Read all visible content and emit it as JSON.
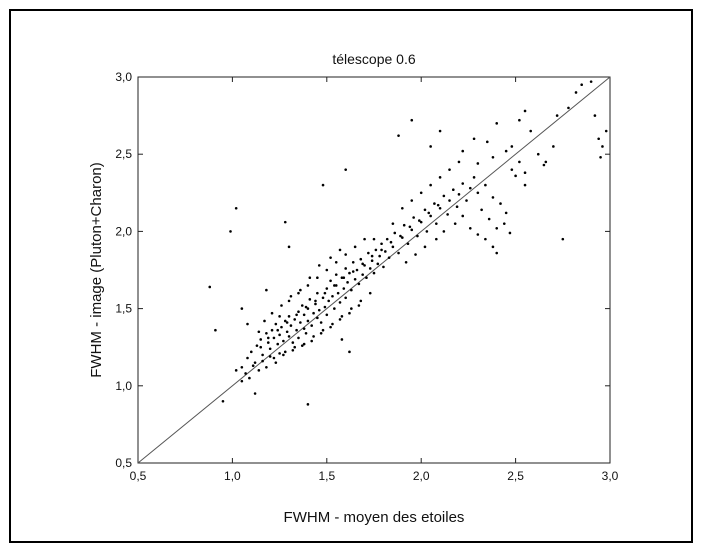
{
  "chart_data": {
    "type": "scatter",
    "title": "télescope 0.6",
    "xlabel": "FWHM - moyen des etoiles",
    "ylabel": "FWHM - image (Pluton+Charon)",
    "xlim": [
      0.5,
      3.0
    ],
    "ylim": [
      0.5,
      3.0
    ],
    "xticks": [
      0.5,
      1.0,
      1.5,
      2.0,
      2.5,
      3.0
    ],
    "yticks": [
      0.5,
      1.0,
      1.5,
      2.0,
      2.5,
      3.0
    ],
    "xtick_labels": [
      "0,5",
      "1,0",
      "1,5",
      "2,0",
      "2,5",
      "3,0"
    ],
    "ytick_labels": [
      "0,5",
      "1,0",
      "1,5",
      "2,0",
      "2,5",
      "3,0"
    ],
    "grid": false,
    "legend": "none",
    "reference_line": {
      "x": [
        0.5,
        3.0
      ],
      "y": [
        0.5,
        3.0
      ]
    },
    "point_color": "#000000",
    "line_color": "#555555",
    "points": [
      [
        1.02,
        1.1
      ],
      [
        1.05,
        1.12
      ],
      [
        1.08,
        1.18
      ],
      [
        1.1,
        1.22
      ],
      [
        1.12,
        1.15
      ],
      [
        1.13,
        1.26
      ],
      [
        1.15,
        1.3
      ],
      [
        1.16,
        1.2
      ],
      [
        1.18,
        1.34
      ],
      [
        1.19,
        1.28
      ],
      [
        1.2,
        1.24
      ],
      [
        1.21,
        1.36
      ],
      [
        1.22,
        1.31
      ],
      [
        1.23,
        1.4
      ],
      [
        1.24,
        1.27
      ],
      [
        1.25,
        1.33
      ],
      [
        1.26,
        1.38
      ],
      [
        1.27,
        1.29
      ],
      [
        1.28,
        1.42
      ],
      [
        1.29,
        1.35
      ],
      [
        1.3,
        1.32
      ],
      [
        1.3,
        1.45
      ],
      [
        1.31,
        1.39
      ],
      [
        1.32,
        1.28
      ],
      [
        1.33,
        1.43
      ],
      [
        1.34,
        1.36
      ],
      [
        1.35,
        1.48
      ],
      [
        1.35,
        1.31
      ],
      [
        1.36,
        1.41
      ],
      [
        1.37,
        1.52
      ],
      [
        1.38,
        1.37
      ],
      [
        1.38,
        1.46
      ],
      [
        1.39,
        1.34
      ],
      [
        1.4,
        1.5
      ],
      [
        1.4,
        1.42
      ],
      [
        1.41,
        1.56
      ],
      [
        1.42,
        1.39
      ],
      [
        1.43,
        1.47
      ],
      [
        1.44,
        1.53
      ],
      [
        1.45,
        1.44
      ],
      [
        1.45,
        1.6
      ],
      [
        1.46,
        1.49
      ],
      [
        1.47,
        1.41
      ],
      [
        1.48,
        1.57
      ],
      [
        1.49,
        1.51
      ],
      [
        1.5,
        1.63
      ],
      [
        1.5,
        1.46
      ],
      [
        1.51,
        1.55
      ],
      [
        1.52,
        1.68
      ],
      [
        1.53,
        1.58
      ],
      [
        1.54,
        1.5
      ],
      [
        1.55,
        1.65
      ],
      [
        1.55,
        1.72
      ],
      [
        1.56,
        1.6
      ],
      [
        1.57,
        1.54
      ],
      [
        1.58,
        1.7
      ],
      [
        1.59,
        1.63
      ],
      [
        1.6,
        1.76
      ],
      [
        1.6,
        1.57
      ],
      [
        1.61,
        1.67
      ],
      [
        1.62,
        1.73
      ],
      [
        1.63,
        1.62
      ],
      [
        1.64,
        1.8
      ],
      [
        1.65,
        1.69
      ],
      [
        1.66,
        1.75
      ],
      [
        1.67,
        1.66
      ],
      [
        1.68,
        1.82
      ],
      [
        1.69,
        1.72
      ],
      [
        1.7,
        1.78
      ],
      [
        1.71,
        1.7
      ],
      [
        1.72,
        1.86
      ],
      [
        1.73,
        1.76
      ],
      [
        1.74,
        1.81
      ],
      [
        1.75,
        1.73
      ],
      [
        1.76,
        1.88
      ],
      [
        1.77,
        1.79
      ],
      [
        1.78,
        1.84
      ],
      [
        1.79,
        1.92
      ],
      [
        1.8,
        1.77
      ],
      [
        1.81,
        1.87
      ],
      [
        1.82,
        1.95
      ],
      [
        1.83,
        1.83
      ],
      [
        1.85,
        1.9
      ],
      [
        1.86,
        1.99
      ],
      [
        1.88,
        1.86
      ],
      [
        1.9,
        1.96
      ],
      [
        1.91,
        2.04
      ],
      [
        1.93,
        1.92
      ],
      [
        1.95,
        2.01
      ],
      [
        1.96,
        2.09
      ],
      [
        1.98,
        1.97
      ],
      [
        2.0,
        2.06
      ],
      [
        2.02,
        2.14
      ],
      [
        2.03,
        2.0
      ],
      [
        2.05,
        2.1
      ],
      [
        2.07,
        2.18
      ],
      [
        2.08,
        2.05
      ],
      [
        2.1,
        2.15
      ],
      [
        2.12,
        2.23
      ],
      [
        2.14,
        2.11
      ],
      [
        2.15,
        2.2
      ],
      [
        2.17,
        2.27
      ],
      [
        2.19,
        2.16
      ],
      [
        2.2,
        2.24
      ],
      [
        2.22,
        2.31
      ],
      [
        2.24,
        2.2
      ],
      [
        2.26,
        2.28
      ],
      [
        2.28,
        2.35
      ],
      [
        2.3,
        2.25
      ],
      [
        2.32,
        2.14
      ],
      [
        2.34,
        2.3
      ],
      [
        2.36,
        2.08
      ],
      [
        2.38,
        2.22
      ],
      [
        2.4,
        2.02
      ],
      [
        2.42,
        2.18
      ],
      [
        2.45,
        2.12
      ],
      [
        2.48,
        2.4
      ],
      [
        2.5,
        2.36
      ],
      [
        2.52,
        2.45
      ],
      [
        2.55,
        2.3
      ],
      [
        1.25,
        1.45
      ],
      [
        1.3,
        1.55
      ],
      [
        1.35,
        1.6
      ],
      [
        1.4,
        1.65
      ],
      [
        1.45,
        1.7
      ],
      [
        1.5,
        1.75
      ],
      [
        1.55,
        1.8
      ],
      [
        1.6,
        1.85
      ],
      [
        1.65,
        1.9
      ],
      [
        1.7,
        1.95
      ],
      [
        1.28,
        1.22
      ],
      [
        1.33,
        1.25
      ],
      [
        1.38,
        1.27
      ],
      [
        1.43,
        1.32
      ],
      [
        1.48,
        1.36
      ],
      [
        1.53,
        1.4
      ],
      [
        1.58,
        1.45
      ],
      [
        1.63,
        1.5
      ],
      [
        1.68,
        1.55
      ],
      [
        1.73,
        1.6
      ],
      [
        1.14,
        1.35
      ],
      [
        1.17,
        1.42
      ],
      [
        1.21,
        1.47
      ],
      [
        1.26,
        1.52
      ],
      [
        1.31,
        1.58
      ],
      [
        1.36,
        1.62
      ],
      [
        1.41,
        1.7
      ],
      [
        1.46,
        1.78
      ],
      [
        1.52,
        1.83
      ],
      [
        1.57,
        1.88
      ],
      [
        1.22,
        1.18
      ],
      [
        1.27,
        1.2
      ],
      [
        1.32,
        1.23
      ],
      [
        1.37,
        1.26
      ],
      [
        1.42,
        1.29
      ],
      [
        1.47,
        1.34
      ],
      [
        1.52,
        1.38
      ],
      [
        1.57,
        1.43
      ],
      [
        1.62,
        1.47
      ],
      [
        1.67,
        1.52
      ],
      [
        1.9,
        2.15
      ],
      [
        1.95,
        2.2
      ],
      [
        2.0,
        2.25
      ],
      [
        2.05,
        2.3
      ],
      [
        2.1,
        2.35
      ],
      [
        2.15,
        2.4
      ],
      [
        1.92,
        1.8
      ],
      [
        1.97,
        1.85
      ],
      [
        2.02,
        1.9
      ],
      [
        2.08,
        1.95
      ],
      [
        2.12,
        2.0
      ],
      [
        2.18,
        2.05
      ],
      [
        2.22,
        2.1
      ],
      [
        2.26,
        2.02
      ],
      [
        2.3,
        1.98
      ],
      [
        2.34,
        1.95
      ],
      [
        2.38,
        1.9
      ],
      [
        2.4,
        1.86
      ],
      [
        2.44,
        2.05
      ],
      [
        2.47,
        1.99
      ],
      [
        0.88,
        1.64
      ],
      [
        0.91,
        1.36
      ],
      [
        0.95,
        0.9
      ],
      [
        0.99,
        2.0
      ],
      [
        1.02,
        2.15
      ],
      [
        1.05,
        1.5
      ],
      [
        1.08,
        1.4
      ],
      [
        1.12,
        0.95
      ],
      [
        1.18,
        1.62
      ],
      [
        1.28,
        2.06
      ],
      [
        1.3,
        1.9
      ],
      [
        1.4,
        0.88
      ],
      [
        1.48,
        2.3
      ],
      [
        1.58,
        1.3
      ],
      [
        1.6,
        2.4
      ],
      [
        1.62,
        1.22
      ],
      [
        1.75,
        1.95
      ],
      [
        1.85,
        2.05
      ],
      [
        1.88,
        2.62
      ],
      [
        1.95,
        2.72
      ],
      [
        2.05,
        2.55
      ],
      [
        2.1,
        2.65
      ],
      [
        2.2,
        2.45
      ],
      [
        2.28,
        2.6
      ],
      [
        2.35,
        2.58
      ],
      [
        2.4,
        2.7
      ],
      [
        2.48,
        2.55
      ],
      [
        2.52,
        2.72
      ],
      [
        2.55,
        2.78
      ],
      [
        2.58,
        2.65
      ],
      [
        2.62,
        2.5
      ],
      [
        2.66,
        2.45
      ],
      [
        2.7,
        2.55
      ],
      [
        2.72,
        2.75
      ],
      [
        2.78,
        2.8
      ],
      [
        2.82,
        2.9
      ],
      [
        2.85,
        2.95
      ],
      [
        2.9,
        2.97
      ],
      [
        2.92,
        2.75
      ],
      [
        2.94,
        2.6
      ],
      [
        2.96,
        2.55
      ],
      [
        2.98,
        2.65
      ],
      [
        2.95,
        2.48
      ],
      [
        2.75,
        1.95
      ],
      [
        2.55,
        2.38
      ],
      [
        2.65,
        2.43
      ],
      [
        2.45,
        2.52
      ],
      [
        2.38,
        2.48
      ],
      [
        2.3,
        2.44
      ],
      [
        2.22,
        2.52
      ],
      [
        1.05,
        1.03
      ],
      [
        1.07,
        1.08
      ],
      [
        1.09,
        1.05
      ],
      [
        1.11,
        1.13
      ],
      [
        1.14,
        1.1
      ],
      [
        1.16,
        1.16
      ],
      [
        1.18,
        1.12
      ],
      [
        1.2,
        1.19
      ],
      [
        1.23,
        1.15
      ],
      [
        1.25,
        1.21
      ],
      [
        1.15,
        1.25
      ],
      [
        1.19,
        1.31
      ],
      [
        1.24,
        1.36
      ],
      [
        1.29,
        1.41
      ],
      [
        1.34,
        1.46
      ],
      [
        1.39,
        1.51
      ],
      [
        1.44,
        1.55
      ],
      [
        1.49,
        1.6
      ],
      [
        1.54,
        1.65
      ],
      [
        1.59,
        1.7
      ],
      [
        1.64,
        1.74
      ],
      [
        1.69,
        1.79
      ],
      [
        1.74,
        1.84
      ],
      [
        1.79,
        1.88
      ],
      [
        1.84,
        1.93
      ],
      [
        1.89,
        1.97
      ],
      [
        1.94,
        2.03
      ],
      [
        1.99,
        2.07
      ],
      [
        2.04,
        2.12
      ],
      [
        2.09,
        2.17
      ]
    ]
  }
}
